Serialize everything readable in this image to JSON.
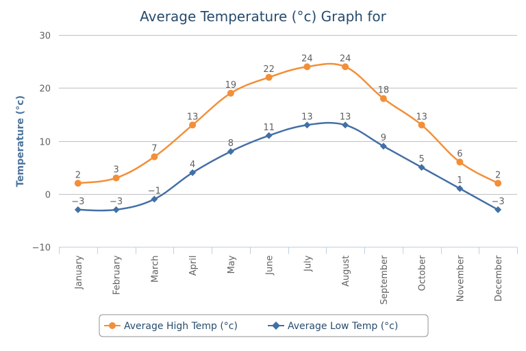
{
  "chart_data": {
    "type": "line",
    "title": "Average Temperature (°c) Graph for",
    "xlabel": "",
    "ylabel": "Temperature (°c)",
    "ylim": [
      -10,
      30
    ],
    "yticks": [
      -10,
      0,
      10,
      20,
      30
    ],
    "grid": true,
    "legend_position": "bottom-center",
    "categories": [
      "January",
      "February",
      "March",
      "April",
      "May",
      "June",
      "July",
      "August",
      "September",
      "October",
      "November",
      "December"
    ],
    "series": [
      {
        "name": "Average High Temp (°c)",
        "color": "#f28f38",
        "marker": "circle",
        "values": [
          2,
          3,
          7,
          13,
          19,
          22,
          24,
          24,
          18,
          13,
          6,
          2
        ]
      },
      {
        "name": "Average Low Temp (°c)",
        "color": "#426fa6",
        "marker": "diamond",
        "values": [
          -3,
          -3,
          -1,
          4,
          8,
          11,
          13,
          13,
          9,
          5,
          1,
          -3
        ]
      }
    ]
  }
}
